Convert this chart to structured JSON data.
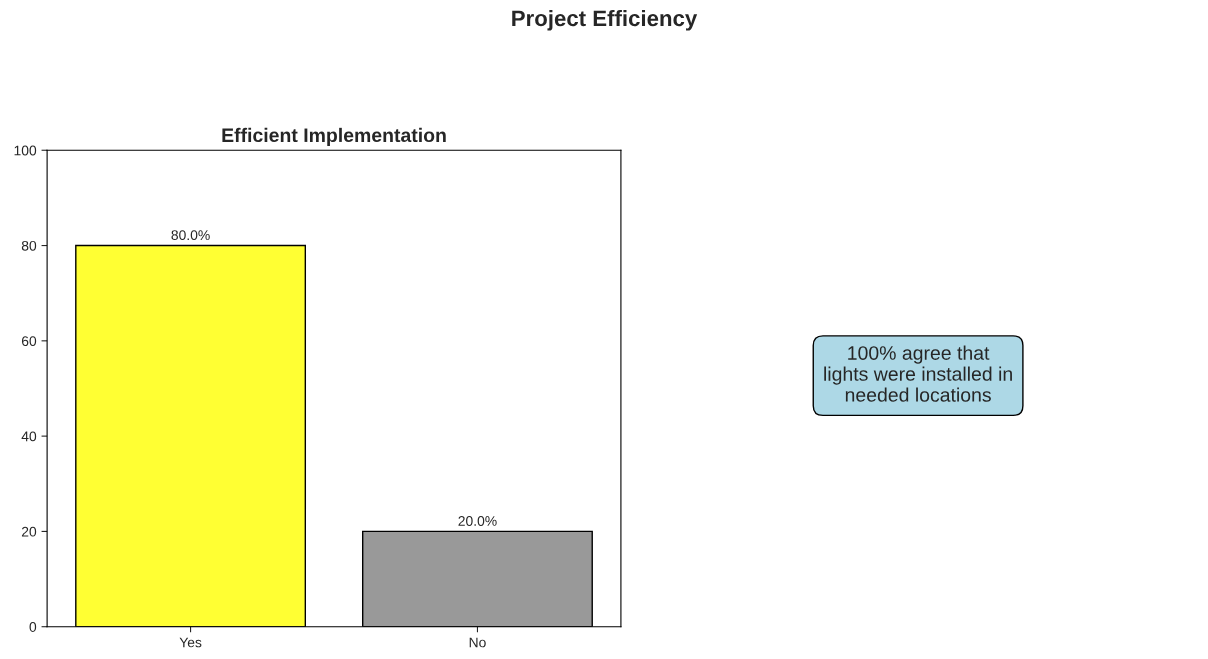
{
  "chart_data": [
    {
      "type": "bar",
      "title": "Efficient Implementation",
      "categories": [
        "Yes",
        "No"
      ],
      "values": [
        80,
        20
      ],
      "colors": [
        "#ffff33",
        "#999999"
      ],
      "value_labels": [
        "80.0%",
        "20.0%"
      ],
      "ylim": [
        0,
        100
      ],
      "yticks": [
        0,
        20,
        40,
        60,
        80,
        100
      ],
      "grid": false,
      "legend": false
    },
    {
      "type": "other",
      "title": "Project Efficiency",
      "annotations": [
        "100% agree that\nlights were installed in\nneeded locations"
      ]
    }
  ]
}
